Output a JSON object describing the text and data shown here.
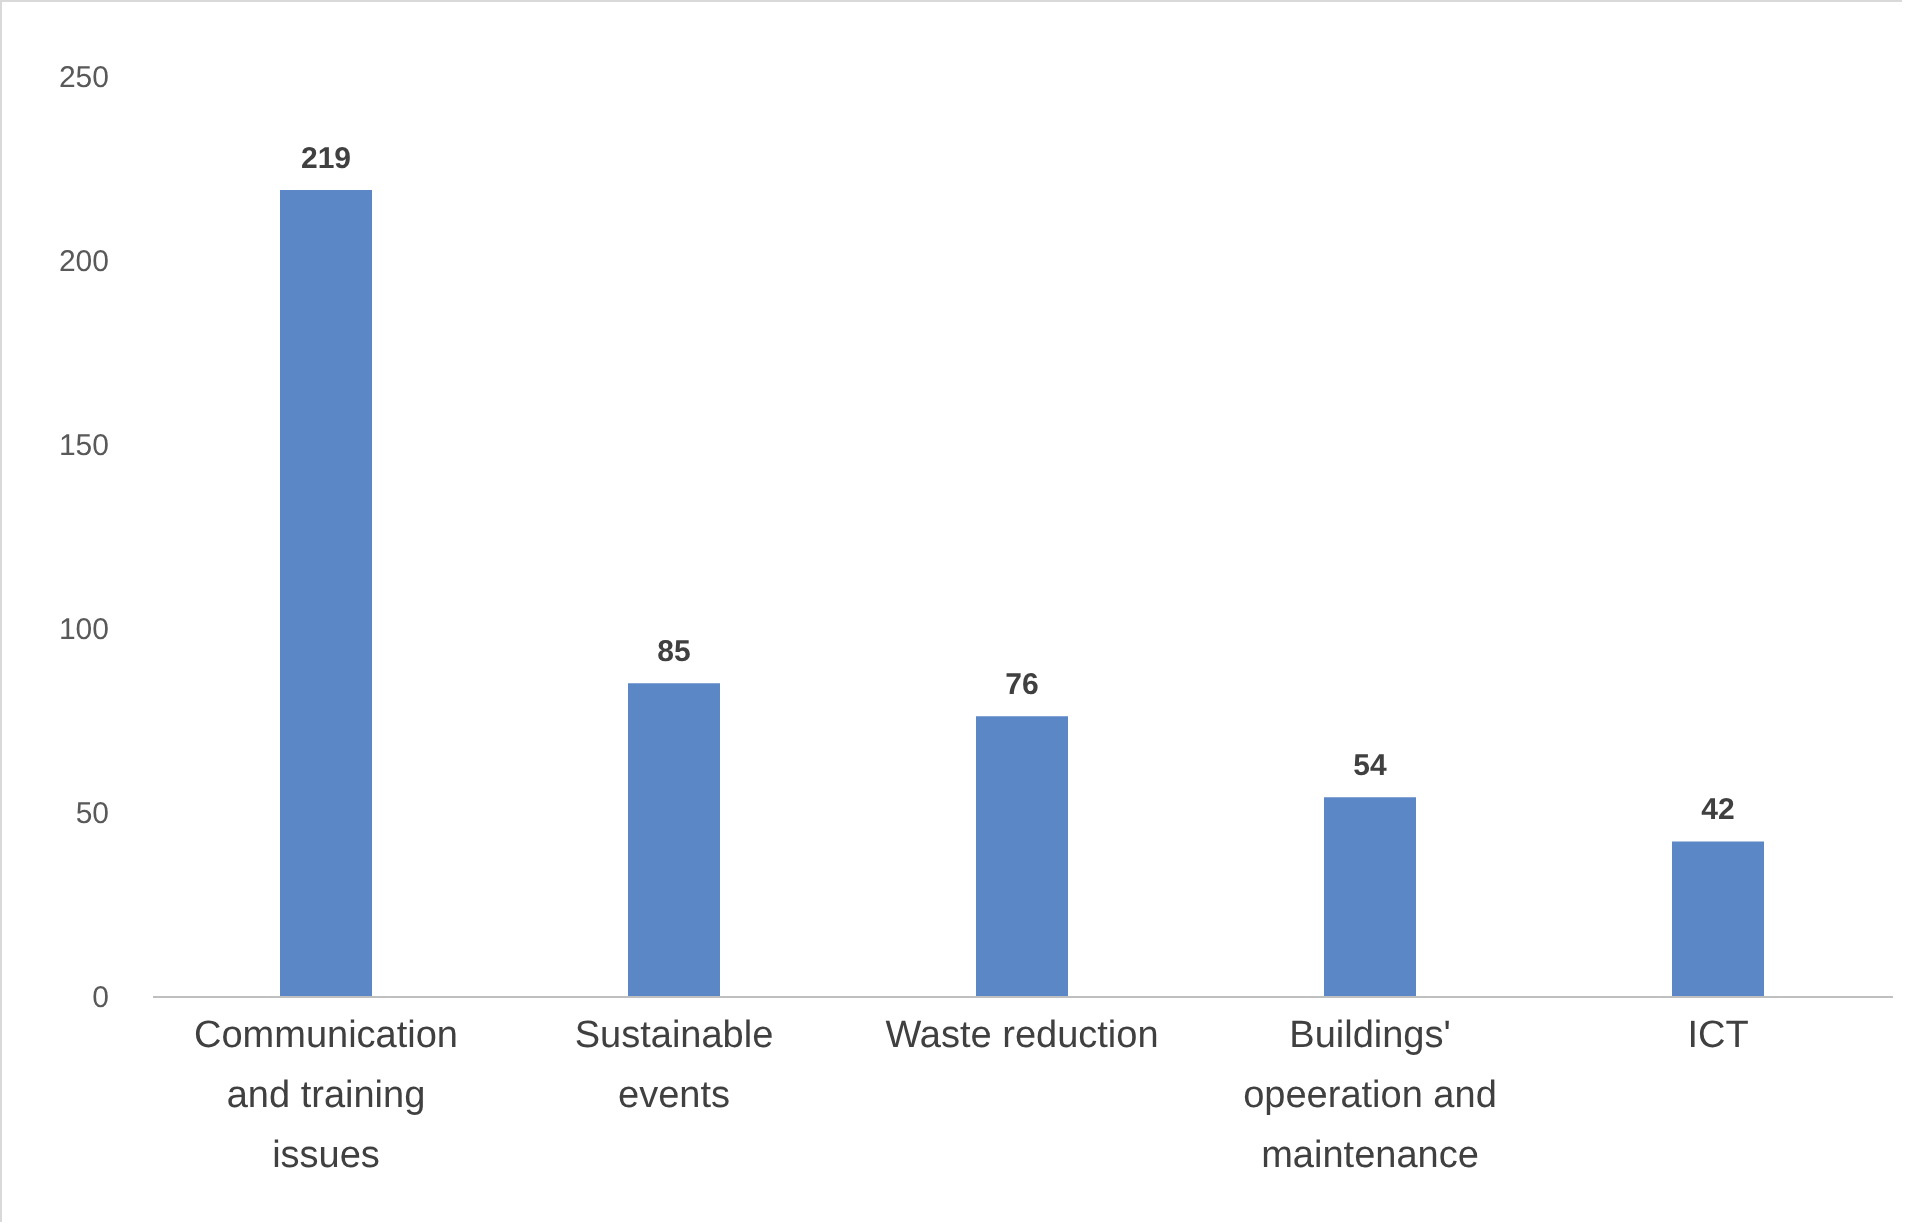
{
  "chart_data": {
    "type": "bar",
    "categories": [
      "Communication and training issues",
      "Sustainable events",
      "Waste reduction",
      "Buildings' opeeration and maintenance",
      "ICT"
    ],
    "values": [
      219,
      85,
      76,
      54,
      42
    ],
    "color": "#5b87c7",
    "ylim": [
      0,
      250
    ],
    "yticks": [
      0,
      50,
      100,
      150,
      200,
      250
    ],
    "grid": false,
    "data_labels": true
  }
}
